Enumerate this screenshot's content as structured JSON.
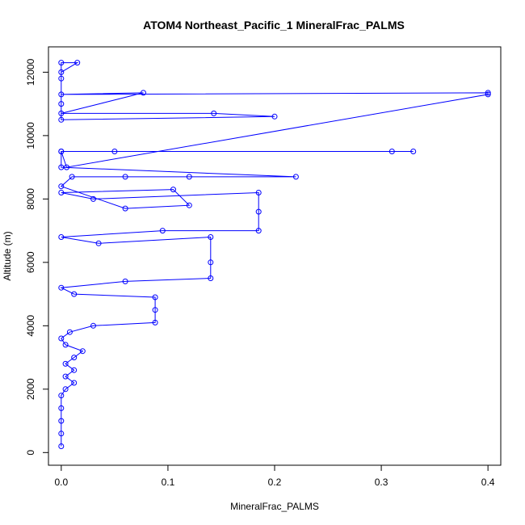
{
  "chart_data": {
    "type": "scatter",
    "title": "ATOM4 Northeast_Pacific_1 MineralFrac_PALMS",
    "xlabel": "MineralFrac_PALMS",
    "ylabel": "Altitude (m)",
    "xlim": [
      -0.012,
      0.412
    ],
    "ylim": [
      -400,
      12800
    ],
    "xticks": [
      0.0,
      0.1,
      0.2,
      0.3,
      0.4
    ],
    "xtick_labels": [
      "0.0",
      "0.1",
      "0.2",
      "0.3",
      "0.4"
    ],
    "yticks": [
      0,
      2000,
      4000,
      6000,
      8000,
      10000,
      12000
    ],
    "ytick_labels": [
      "0",
      "2000",
      "4000",
      "6000",
      "8000",
      "10000",
      "12000"
    ],
    "grid": false,
    "legend": "none",
    "marker": "open-circle",
    "color": "#0000ff",
    "connected": true,
    "series": [
      {
        "points": [
          [
            0.0,
            200
          ],
          [
            0.0,
            600
          ],
          [
            0.0,
            1000
          ],
          [
            0.0,
            1400
          ],
          [
            0.0,
            1800
          ],
          [
            0.004,
            2000
          ],
          [
            0.012,
            2200
          ],
          [
            0.004,
            2400
          ],
          [
            0.012,
            2600
          ],
          [
            0.004,
            2800
          ],
          [
            0.012,
            3000
          ],
          [
            0.02,
            3200
          ],
          [
            0.004,
            3400
          ],
          [
            0.0,
            3600
          ],
          [
            0.008,
            3800
          ],
          [
            0.03,
            4000
          ],
          [
            0.088,
            4100
          ],
          [
            0.088,
            4500
          ],
          [
            0.088,
            4900
          ],
          [
            0.012,
            5000
          ],
          [
            0.0,
            5200
          ],
          [
            0.06,
            5400
          ],
          [
            0.14,
            5500
          ],
          [
            0.14,
            6000
          ],
          [
            0.14,
            6800
          ],
          [
            0.035,
            6600
          ],
          [
            0.0,
            6800
          ],
          [
            0.095,
            7000
          ],
          [
            0.185,
            7000
          ],
          [
            0.185,
            7600
          ],
          [
            0.185,
            8200
          ],
          [
            0.03,
            8000
          ],
          [
            0.0,
            8200
          ],
          [
            0.105,
            8300
          ],
          [
            0.12,
            7800
          ],
          [
            0.06,
            7700
          ],
          [
            0.0,
            8400
          ],
          [
            0.01,
            8700
          ],
          [
            0.06,
            8700
          ],
          [
            0.12,
            8700
          ],
          [
            0.22,
            8700
          ],
          [
            0.0,
            9000
          ],
          [
            0.0,
            9500
          ],
          [
            0.05,
            9500
          ],
          [
            0.31,
            9500
          ],
          [
            0.33,
            9500
          ],
          [
            0.0,
            9500
          ],
          [
            0.005,
            9000
          ],
          [
            0.4,
            11300
          ],
          [
            0.4,
            11350
          ],
          [
            0.0,
            11300
          ],
          [
            0.077,
            11350
          ],
          [
            0.0,
            10700
          ],
          [
            0.143,
            10700
          ],
          [
            0.2,
            10600
          ],
          [
            0.0,
            10500
          ],
          [
            0.0,
            11000
          ],
          [
            0.0,
            11800
          ],
          [
            0.0,
            12300
          ],
          [
            0.015,
            12300
          ],
          [
            0.0,
            12000
          ]
        ]
      }
    ]
  }
}
